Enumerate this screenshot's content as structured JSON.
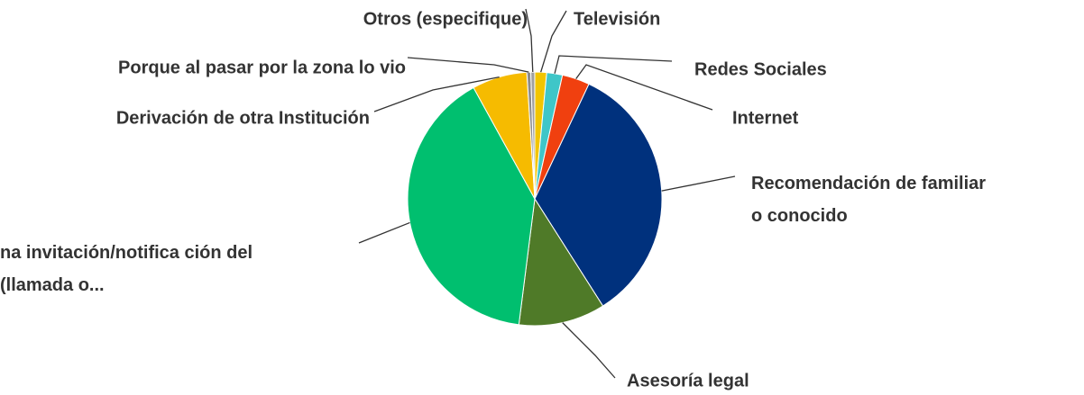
{
  "chart_data": {
    "type": "pie",
    "categories": [
      "Televisión",
      "Redes Sociales",
      "Internet",
      "Recomendación de familiar o conocido",
      "Asesoría legal",
      "na invitación/notifica ción del (llamada o...",
      "Derivación de otra Institución",
      "Porque al pasar por la zona lo vio",
      "Otros (especifique)"
    ],
    "values": [
      1.5,
      2,
      3.5,
      34,
      11,
      40,
      7,
      0.5,
      0.5
    ],
    "colors": [
      "#f2c500",
      "#3fc6c8",
      "#f0400f",
      "#00317d",
      "#4f7a28",
      "#00bf6f",
      "#f6bb00",
      "#8b8b8b",
      "#a0a0a0"
    ]
  }
}
